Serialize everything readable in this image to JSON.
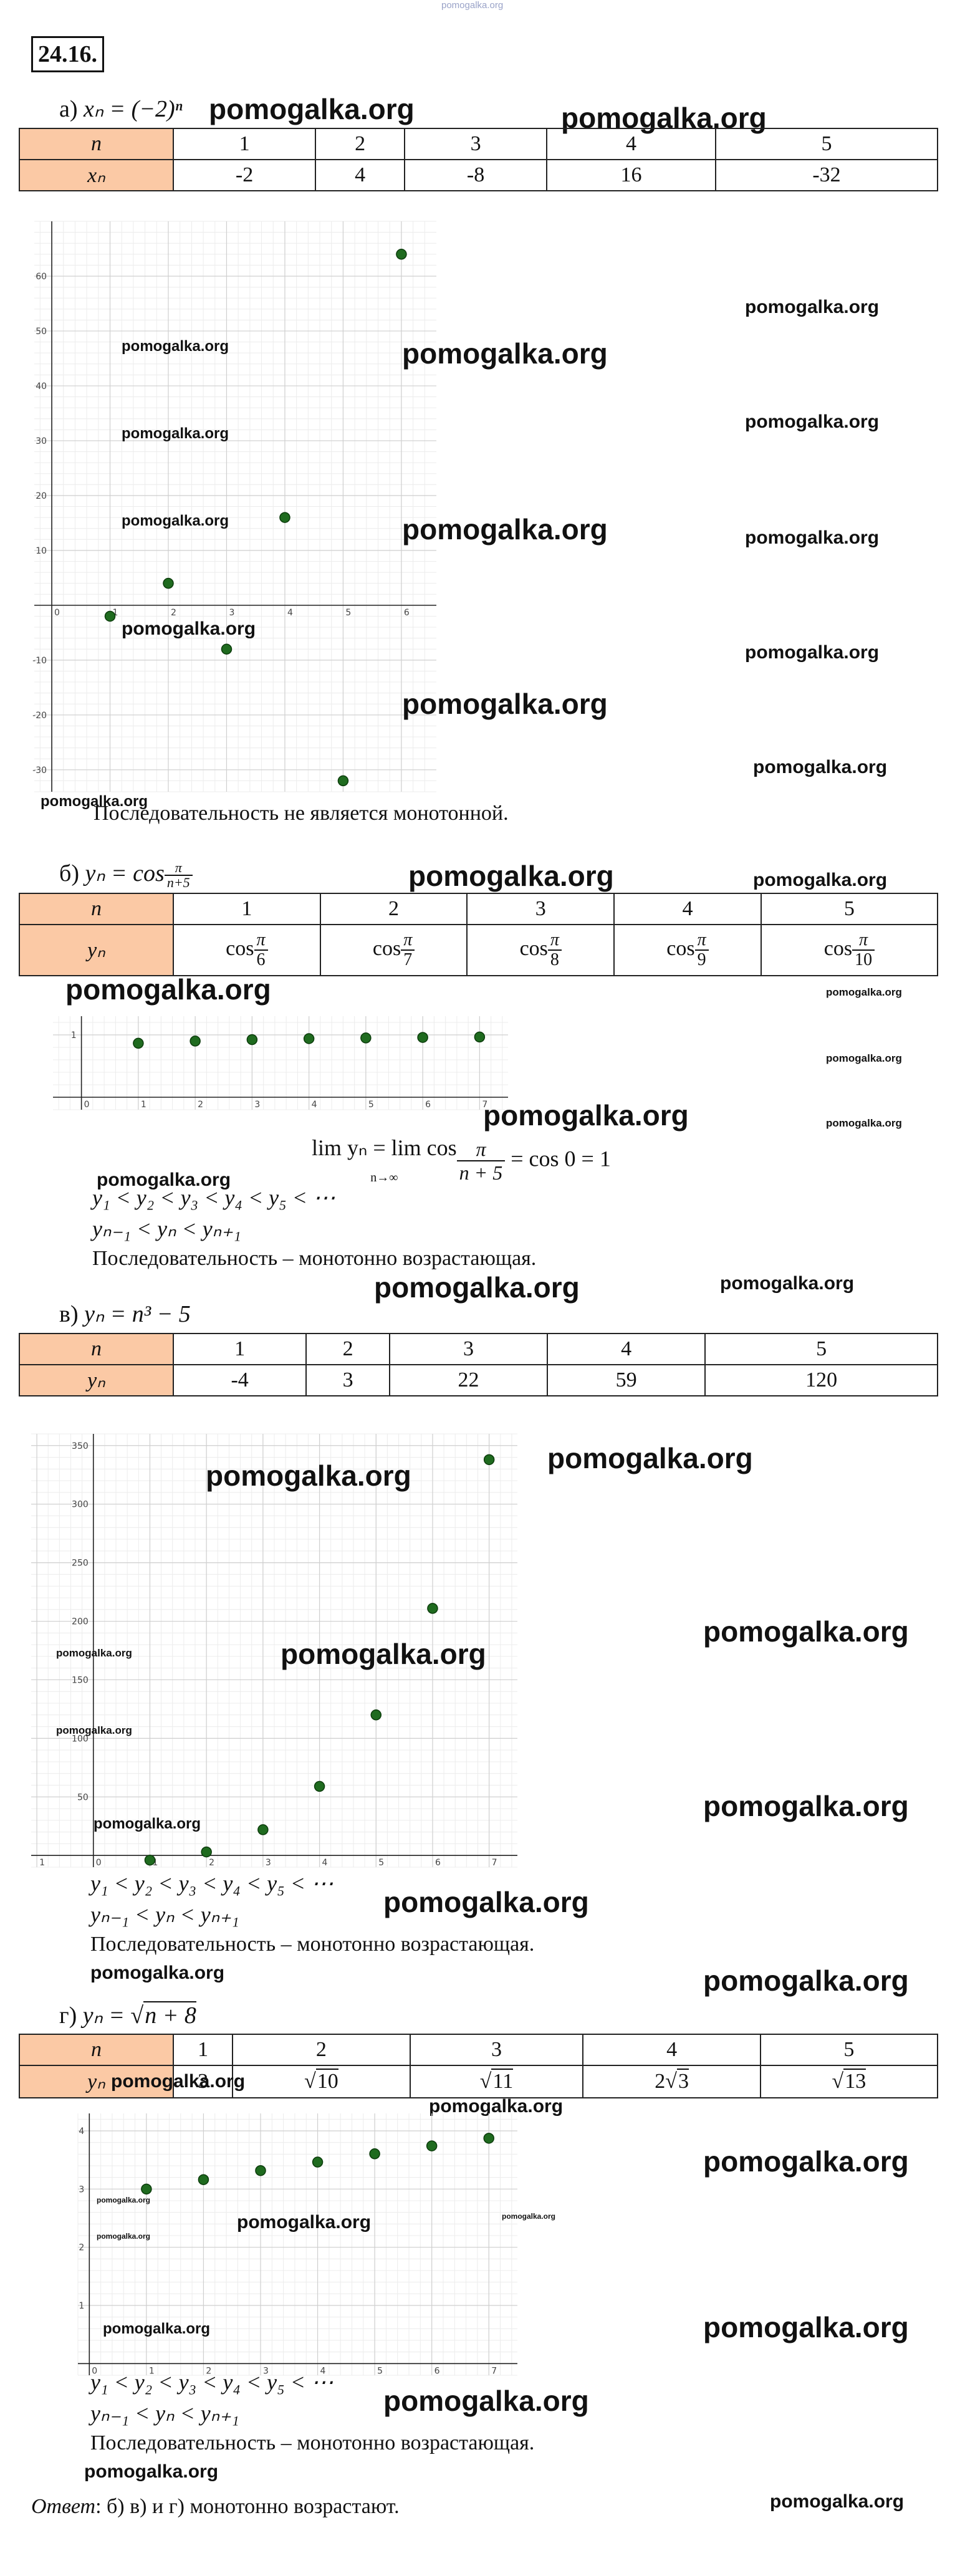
{
  "header": {
    "site": "pomogalka.org"
  },
  "problem": {
    "number": "24.16."
  },
  "watermark": "pomogalka.org",
  "parts": {
    "a": {
      "label": "а)",
      "formula": "xₙ = (−2)ⁿ",
      "row_head_n": "n",
      "row_head_y": "xₙ",
      "n_values": [
        "1",
        "2",
        "3",
        "4",
        "5"
      ],
      "y_values": [
        "-2",
        "4",
        "-8",
        "16",
        "-32"
      ],
      "conclusion": "Последовательность не является монотонной."
    },
    "b": {
      "label": "б)",
      "formula_lhs": "yₙ = cos",
      "formula_num": "π",
      "formula_den": "n+5",
      "row_head_n": "n",
      "row_head_y": "yₙ",
      "n_values": [
        "1",
        "2",
        "3",
        "4",
        "5"
      ],
      "cos_label": "cos",
      "pi": "π",
      "denominators": [
        "6",
        "7",
        "8",
        "9",
        "10"
      ],
      "limit_line": "lim yₙ = lim cos",
      "limit_sub": "n→∞",
      "limit_num": "π",
      "limit_den": "n + 5",
      "limit_rhs": "= cos 0 = 1",
      "ineq1": "y₁ < y₂ < y₃ < y₄ < y₅ < ⋯",
      "ineq2": "yₙ₋₁ < yₙ < yₙ₊₁",
      "conclusion": "Последовательность – монотонно возрастающая."
    },
    "c": {
      "label": "в)",
      "formula": "yₙ = n³ − 5",
      "row_head_n": "n",
      "row_head_y": "yₙ",
      "n_values": [
        "1",
        "2",
        "3",
        "4",
        "5"
      ],
      "y_values": [
        "-4",
        "3",
        "22",
        "59",
        "120"
      ],
      "ineq1": "y₁ < y₂ < y₃ < y₄ < y₅ < ⋯",
      "ineq2": "yₙ₋₁ < yₙ < yₙ₊₁",
      "conclusion": "Последовательность – монотонно возрастающая."
    },
    "d": {
      "label": "г)",
      "formula_lhs": "yₙ = ",
      "formula_sqrt": "n + 8",
      "row_head_n": "n",
      "row_head_y": "yₙ",
      "n_values": [
        "1",
        "2",
        "3",
        "4",
        "5"
      ],
      "y_first": "3",
      "y_sqrt_10": "10",
      "y_sqrt_11": "11",
      "y_coef_4": "2",
      "y_sqrt_12": "3",
      "y_sqrt_13": "13",
      "ineq1": "y₁ < y₂ < y₃ < y₄ < y₅ < ⋯",
      "ineq2": "yₙ₋₁ < yₙ < yₙ₊₁",
      "conclusion": "Последовательность – монотонно возрастающая."
    }
  },
  "answer": {
    "label": "Ответ",
    "text": ": б) в) и г) монотонно возрастают."
  },
  "chart_data": [
    {
      "type": "scatter",
      "x": [
        1,
        2,
        3,
        4,
        5,
        6
      ],
      "y": [
        -2,
        4,
        -8,
        16,
        -32,
        64
      ],
      "x_ticks": [
        "0",
        "1",
        "2",
        "3",
        "4",
        "5",
        "6"
      ],
      "y_ticks": [
        "-30",
        "-20",
        "-10",
        "10",
        "20",
        "30",
        "40",
        "50",
        "60"
      ],
      "xlim": [
        -0.3,
        6.6
      ],
      "ylim": [
        -34,
        70
      ],
      "grid": true,
      "point_color": "#1f6b1f"
    },
    {
      "type": "scatter",
      "x": [
        1,
        2,
        3,
        4,
        5,
        6,
        7
      ],
      "y": [
        0.866,
        0.901,
        0.924,
        0.94,
        0.951,
        0.959,
        0.966
      ],
      "x_ticks": [
        "0",
        "1",
        "2",
        "3",
        "4",
        "5",
        "6",
        "7"
      ],
      "y_ticks": [
        "1"
      ],
      "xlim": [
        -0.5,
        7.5
      ],
      "ylim": [
        -0.2,
        1.3
      ],
      "grid": true,
      "point_color": "#1f6b1f"
    },
    {
      "type": "scatter",
      "x": [
        1,
        2,
        3,
        4,
        5,
        6,
        7
      ],
      "y": [
        -4,
        3,
        22,
        59,
        120,
        211,
        338
      ],
      "x_ticks": [
        "1",
        "0",
        "1",
        "2",
        "3",
        "4",
        "5",
        "6",
        "7"
      ],
      "y_ticks": [
        "50",
        "100",
        "150",
        "200",
        "250",
        "300",
        "350"
      ],
      "xlim": [
        -1.1,
        7.5
      ],
      "ylim": [
        -10,
        360
      ],
      "grid": true,
      "point_color": "#1f6b1f"
    },
    {
      "type": "scatter",
      "x": [
        1,
        2,
        3,
        4,
        5,
        6,
        7
      ],
      "y": [
        3,
        3.162,
        3.317,
        3.464,
        3.606,
        3.742,
        3.873
      ],
      "x_ticks": [
        "0",
        "1",
        "2",
        "3",
        "4",
        "5",
        "6",
        "7"
      ],
      "y_ticks": [
        "1",
        "2",
        "3",
        "4"
      ],
      "xlim": [
        -0.2,
        7.5
      ],
      "ylim": [
        -0.2,
        4.3
      ],
      "grid": true,
      "point_color": "#1f6b1f"
    }
  ]
}
